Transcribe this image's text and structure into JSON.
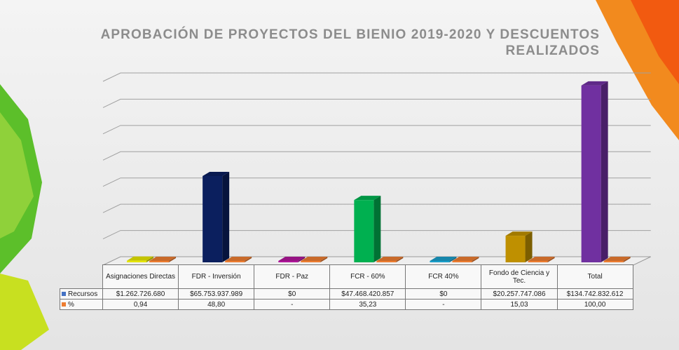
{
  "chart_data": {
    "type": "bar3d",
    "title": "APROBACIÓN DE PROYECTOS DEL BIENIO 2019-2020 Y DESCUENTOS\nREALIZADOS",
    "categories": [
      "Asignaciones Directas",
      "FDR - Inversión",
      "FDR - Paz",
      "FCR - 60%",
      "FCR 40%",
      "Fondo de Ciencia y Tec.",
      "Total"
    ],
    "series": [
      {
        "name": "Recursos",
        "color": "#4472c4",
        "colors": [
          "#e6e600",
          "#0b1f5e",
          "#b0169a",
          "#00b050",
          "#1a9ec9",
          "#bf9000",
          "#7030a0"
        ],
        "values": [
          1262726680,
          65753937989,
          0,
          47468420857,
          0,
          20257747086,
          134742832612
        ],
        "value_labels": [
          "$1.262.726.680",
          "$65.753.937.989",
          "$0",
          "$47.468.420.857",
          "$0",
          "$20.257.747.086",
          "$134.742.832.612"
        ]
      },
      {
        "name": "%",
        "color": "#ed7d31",
        "values": [
          0.94,
          48.8,
          null,
          35.23,
          null,
          15.03,
          100
        ],
        "value_labels": [
          "0,94",
          "48,80",
          "-",
          "35,23",
          "-",
          "15,03",
          "100,00"
        ]
      }
    ],
    "ylim": [
      0,
      140000000000
    ],
    "yticks": [
      0,
      20000000000,
      40000000000,
      60000000000,
      80000000000,
      100000000000,
      120000000000,
      140000000000
    ],
    "grid": true
  }
}
